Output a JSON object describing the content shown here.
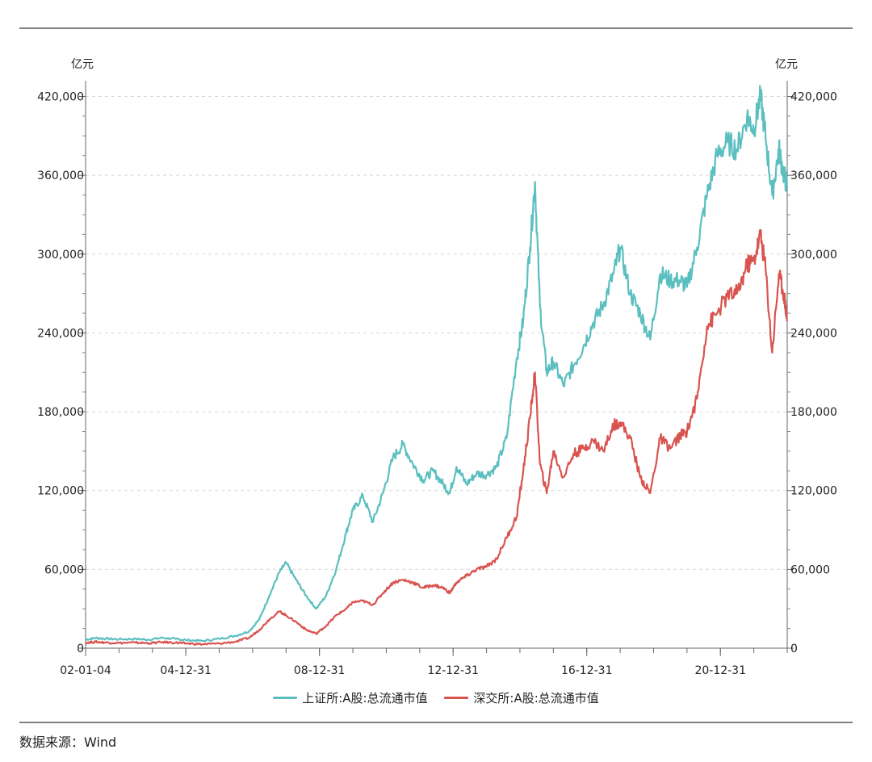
{
  "source_note": "数据来源：Wind",
  "chart_data": {
    "type": "line",
    "left_unit": "亿元",
    "right_unit": "亿元",
    "ylim": [
      0,
      432000
    ],
    "y_ticks": [
      0,
      60000,
      120000,
      180000,
      240000,
      300000,
      360000,
      420000
    ],
    "y_tick_labels": [
      "0",
      "60,000",
      "120,000",
      "180,000",
      "240,000",
      "300,000",
      "360,000",
      "420,000"
    ],
    "xlim": [
      2002.0,
      2023.0
    ],
    "x_ticks": [
      2002.0,
      2005.0,
      2009.0,
      2013.0,
      2017.0,
      2021.0
    ],
    "x_tick_labels": [
      "02-01-04",
      "04-12-31",
      "08-12-31",
      "12-12-31",
      "16-12-31",
      "20-12-31"
    ],
    "grid": "horizontal-dashed",
    "legend_position": "bottom",
    "series": [
      {
        "name": "上证所:A股:总流通市值",
        "color": "#5bbfc0",
        "points": [
          [
            2002.0,
            6500
          ],
          [
            2002.3,
            7800
          ],
          [
            2002.6,
            7200
          ],
          [
            2003.0,
            6800
          ],
          [
            2003.5,
            7000
          ],
          [
            2003.9,
            6500
          ],
          [
            2004.3,
            7900
          ],
          [
            2004.7,
            7000
          ],
          [
            2005.0,
            6200
          ],
          [
            2005.5,
            5500
          ],
          [
            2006.0,
            7200
          ],
          [
            2006.5,
            9500
          ],
          [
            2006.9,
            13000
          ],
          [
            2007.2,
            22000
          ],
          [
            2007.5,
            40000
          ],
          [
            2007.8,
            58000
          ],
          [
            2008.0,
            65000
          ],
          [
            2008.3,
            52000
          ],
          [
            2008.6,
            40000
          ],
          [
            2008.9,
            30000
          ],
          [
            2009.2,
            40000
          ],
          [
            2009.5,
            60000
          ],
          [
            2009.8,
            88000
          ],
          [
            2010.0,
            105000
          ],
          [
            2010.3,
            116000
          ],
          [
            2010.6,
            96000
          ],
          [
            2010.9,
            118000
          ],
          [
            2011.2,
            145000
          ],
          [
            2011.5,
            155000
          ],
          [
            2011.8,
            140000
          ],
          [
            2012.1,
            128000
          ],
          [
            2012.4,
            135000
          ],
          [
            2012.7,
            125000
          ],
          [
            2012.9,
            118000
          ],
          [
            2013.1,
            138000
          ],
          [
            2013.4,
            125000
          ],
          [
            2013.7,
            133000
          ],
          [
            2014.0,
            132000
          ],
          [
            2014.3,
            138000
          ],
          [
            2014.6,
            160000
          ],
          [
            2014.9,
            220000
          ],
          [
            2015.1,
            250000
          ],
          [
            2015.3,
            305000
          ],
          [
            2015.45,
            355000
          ],
          [
            2015.6,
            260000
          ],
          [
            2015.8,
            210000
          ],
          [
            2016.0,
            218000
          ],
          [
            2016.3,
            200000
          ],
          [
            2016.6,
            215000
          ],
          [
            2016.9,
            230000
          ],
          [
            2017.2,
            248000
          ],
          [
            2017.5,
            262000
          ],
          [
            2017.8,
            285000
          ],
          [
            2018.0,
            305000
          ],
          [
            2018.3,
            270000
          ],
          [
            2018.6,
            255000
          ],
          [
            2018.9,
            235000
          ],
          [
            2019.2,
            285000
          ],
          [
            2019.5,
            280000
          ],
          [
            2019.8,
            280000
          ],
          [
            2020.0,
            275000
          ],
          [
            2020.3,
            305000
          ],
          [
            2020.6,
            345000
          ],
          [
            2020.9,
            375000
          ],
          [
            2021.2,
            385000
          ],
          [
            2021.5,
            380000
          ],
          [
            2021.8,
            405000
          ],
          [
            2022.0,
            395000
          ],
          [
            2022.2,
            420000
          ],
          [
            2022.35,
            390000
          ],
          [
            2022.55,
            345000
          ],
          [
            2022.75,
            380000
          ],
          [
            2022.9,
            360000
          ],
          [
            2023.0,
            352000
          ]
        ]
      },
      {
        "name": "深交所:A股:总流通市值",
        "color": "#d9534f",
        "points": [
          [
            2002.0,
            4200
          ],
          [
            2002.3,
            4800
          ],
          [
            2002.6,
            4300
          ],
          [
            2003.0,
            4000
          ],
          [
            2003.5,
            4200
          ],
          [
            2003.9,
            3800
          ],
          [
            2004.3,
            4600
          ],
          [
            2004.7,
            4200
          ],
          [
            2005.0,
            3600
          ],
          [
            2005.5,
            3000
          ],
          [
            2006.0,
            3500
          ],
          [
            2006.5,
            5000
          ],
          [
            2006.9,
            8000
          ],
          [
            2007.2,
            14000
          ],
          [
            2007.5,
            22000
          ],
          [
            2007.8,
            28000
          ],
          [
            2008.0,
            25000
          ],
          [
            2008.3,
            20000
          ],
          [
            2008.6,
            14000
          ],
          [
            2008.9,
            11000
          ],
          [
            2009.2,
            17000
          ],
          [
            2009.5,
            25000
          ],
          [
            2009.8,
            30000
          ],
          [
            2010.0,
            35000
          ],
          [
            2010.3,
            36000
          ],
          [
            2010.6,
            33000
          ],
          [
            2010.9,
            42000
          ],
          [
            2011.2,
            50000
          ],
          [
            2011.5,
            52000
          ],
          [
            2011.8,
            50000
          ],
          [
            2012.1,
            46000
          ],
          [
            2012.4,
            48000
          ],
          [
            2012.7,
            46000
          ],
          [
            2012.9,
            42000
          ],
          [
            2013.1,
            50000
          ],
          [
            2013.4,
            55000
          ],
          [
            2013.7,
            60000
          ],
          [
            2014.0,
            62000
          ],
          [
            2014.3,
            68000
          ],
          [
            2014.6,
            84000
          ],
          [
            2014.9,
            100000
          ],
          [
            2015.1,
            135000
          ],
          [
            2015.3,
            175000
          ],
          [
            2015.45,
            210000
          ],
          [
            2015.6,
            140000
          ],
          [
            2015.8,
            118000
          ],
          [
            2016.0,
            150000
          ],
          [
            2016.3,
            130000
          ],
          [
            2016.6,
            148000
          ],
          [
            2016.9,
            152000
          ],
          [
            2017.2,
            158000
          ],
          [
            2017.5,
            150000
          ],
          [
            2017.8,
            170000
          ],
          [
            2018.0,
            172000
          ],
          [
            2018.3,
            160000
          ],
          [
            2018.6,
            130000
          ],
          [
            2018.9,
            118000
          ],
          [
            2019.2,
            160000
          ],
          [
            2019.5,
            152000
          ],
          [
            2019.8,
            162000
          ],
          [
            2020.0,
            165000
          ],
          [
            2020.3,
            190000
          ],
          [
            2020.6,
            245000
          ],
          [
            2020.9,
            255000
          ],
          [
            2021.2,
            268000
          ],
          [
            2021.5,
            270000
          ],
          [
            2021.8,
            292000
          ],
          [
            2022.0,
            295000
          ],
          [
            2022.2,
            315000
          ],
          [
            2022.35,
            290000
          ],
          [
            2022.55,
            225000
          ],
          [
            2022.75,
            285000
          ],
          [
            2022.9,
            270000
          ],
          [
            2023.0,
            250000
          ]
        ]
      }
    ]
  }
}
